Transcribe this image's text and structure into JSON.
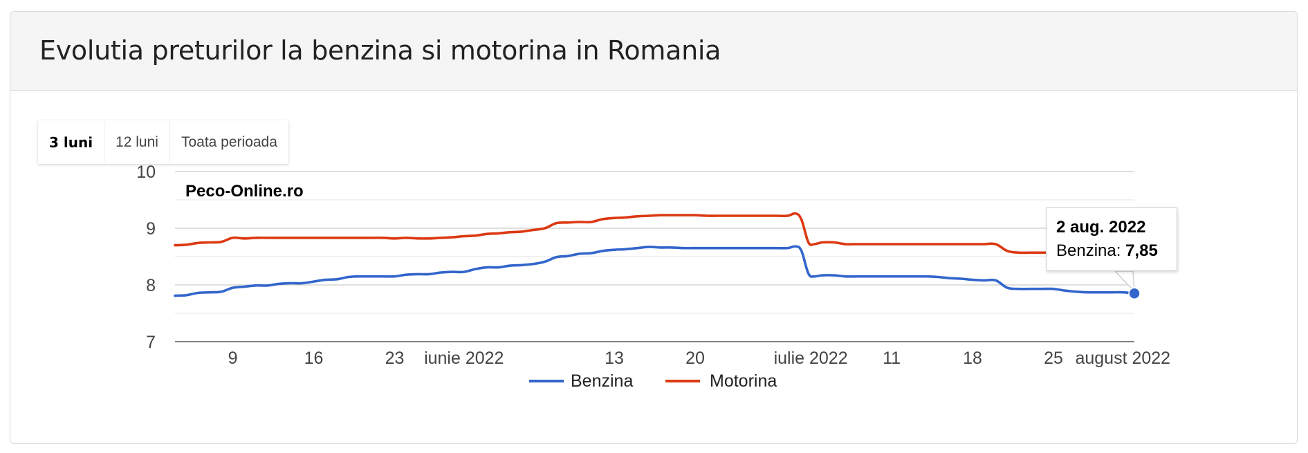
{
  "panel": {
    "title": "Evolutia preturilor la benzina si motorina in Romania"
  },
  "range_buttons": [
    {
      "label": "3 luni",
      "active": true
    },
    {
      "label": "12 luni",
      "active": false
    },
    {
      "label": "Toata perioada",
      "active": false
    }
  ],
  "chart_data": {
    "type": "line",
    "watermark": "Peco-Online.ro",
    "ylim": [
      7,
      10
    ],
    "y_ticks": [
      "10",
      "9",
      "8",
      "7"
    ],
    "x_ticks": [
      {
        "day": 9,
        "label": "9"
      },
      {
        "day": 16,
        "label": "16"
      },
      {
        "day": 23,
        "label": "23"
      },
      {
        "day": 29,
        "label": "iunie 2022"
      },
      {
        "day": 42,
        "label": "13"
      },
      {
        "day": 49,
        "label": "20"
      },
      {
        "day": 59,
        "label": "iulie 2022"
      },
      {
        "day": 66,
        "label": "11"
      },
      {
        "day": 73,
        "label": "18"
      },
      {
        "day": 80,
        "label": "25"
      },
      {
        "day": 86,
        "label": "august 2022"
      }
    ],
    "series": [
      {
        "name": "Benzina",
        "color": "#3366cc",
        "points": [
          [
            4,
            7.81
          ],
          [
            5,
            7.82
          ],
          [
            6,
            7.86
          ],
          [
            7,
            7.87
          ],
          [
            8,
            7.88
          ],
          [
            9,
            7.95
          ],
          [
            10,
            7.97
          ],
          [
            11,
            7.99
          ],
          [
            12,
            7.99
          ],
          [
            13,
            8.02
          ],
          [
            14,
            8.03
          ],
          [
            15,
            8.03
          ],
          [
            16,
            8.06
          ],
          [
            17,
            8.09
          ],
          [
            18,
            8.1
          ],
          [
            19,
            8.14
          ],
          [
            20,
            8.15
          ],
          [
            21,
            8.15
          ],
          [
            22,
            8.15
          ],
          [
            23,
            8.15
          ],
          [
            24,
            8.18
          ],
          [
            25,
            8.19
          ],
          [
            26,
            8.19
          ],
          [
            27,
            8.22
          ],
          [
            28,
            8.23
          ],
          [
            29,
            8.23
          ],
          [
            30,
            8.28
          ],
          [
            31,
            8.31
          ],
          [
            32,
            8.31
          ],
          [
            33,
            8.34
          ],
          [
            34,
            8.35
          ],
          [
            35,
            8.37
          ],
          [
            36,
            8.41
          ],
          [
            37,
            8.49
          ],
          [
            38,
            8.51
          ],
          [
            39,
            8.55
          ],
          [
            40,
            8.56
          ],
          [
            41,
            8.6
          ],
          [
            42,
            8.62
          ],
          [
            43,
            8.63
          ],
          [
            44,
            8.65
          ],
          [
            45,
            8.67
          ],
          [
            46,
            8.66
          ],
          [
            47,
            8.66
          ],
          [
            48,
            8.65
          ],
          [
            49,
            8.65
          ],
          [
            50,
            8.65
          ],
          [
            51,
            8.65
          ],
          [
            52,
            8.65
          ],
          [
            53,
            8.65
          ],
          [
            54,
            8.65
          ],
          [
            55,
            8.65
          ],
          [
            56,
            8.65
          ],
          [
            57,
            8.65
          ],
          [
            57.7,
            8.68
          ],
          [
            58.2,
            8.6
          ],
          [
            58.8,
            8.2
          ],
          [
            59.3,
            8.15
          ],
          [
            60,
            8.17
          ],
          [
            61,
            8.17
          ],
          [
            62,
            8.15
          ],
          [
            63,
            8.15
          ],
          [
            64,
            8.15
          ],
          [
            65,
            8.15
          ],
          [
            66,
            8.15
          ],
          [
            67,
            8.15
          ],
          [
            68,
            8.15
          ],
          [
            69,
            8.15
          ],
          [
            70,
            8.14
          ],
          [
            71,
            8.12
          ],
          [
            72,
            8.11
          ],
          [
            73,
            8.09
          ],
          [
            74,
            8.08
          ],
          [
            75,
            8.08
          ],
          [
            76,
            7.95
          ],
          [
            77,
            7.93
          ],
          [
            78,
            7.93
          ],
          [
            79,
            7.93
          ],
          [
            80,
            7.93
          ],
          [
            81,
            7.9
          ],
          [
            82,
            7.88
          ],
          [
            83,
            7.87
          ],
          [
            84,
            7.87
          ],
          [
            85,
            7.87
          ],
          [
            86,
            7.87
          ],
          [
            87,
            7.85
          ]
        ]
      },
      {
        "name": "Motorina",
        "color": "#dc3912",
        "points": [
          [
            4,
            8.7
          ],
          [
            5,
            8.71
          ],
          [
            6,
            8.74
          ],
          [
            7,
            8.75
          ],
          [
            8,
            8.76
          ],
          [
            9,
            8.83
          ],
          [
            10,
            8.82
          ],
          [
            11,
            8.83
          ],
          [
            12,
            8.83
          ],
          [
            13,
            8.83
          ],
          [
            14,
            8.83
          ],
          [
            15,
            8.83
          ],
          [
            16,
            8.83
          ],
          [
            17,
            8.83
          ],
          [
            18,
            8.83
          ],
          [
            19,
            8.83
          ],
          [
            20,
            8.83
          ],
          [
            21,
            8.83
          ],
          [
            22,
            8.83
          ],
          [
            23,
            8.82
          ],
          [
            24,
            8.83
          ],
          [
            25,
            8.82
          ],
          [
            26,
            8.82
          ],
          [
            27,
            8.83
          ],
          [
            28,
            8.84
          ],
          [
            29,
            8.86
          ],
          [
            30,
            8.87
          ],
          [
            31,
            8.9
          ],
          [
            32,
            8.91
          ],
          [
            33,
            8.93
          ],
          [
            34,
            8.94
          ],
          [
            35,
            8.97
          ],
          [
            36,
            9.0
          ],
          [
            37,
            9.09
          ],
          [
            38,
            9.1
          ],
          [
            39,
            9.11
          ],
          [
            40,
            9.11
          ],
          [
            41,
            9.16
          ],
          [
            42,
            9.18
          ],
          [
            43,
            9.19
          ],
          [
            44,
            9.21
          ],
          [
            45,
            9.22
          ],
          [
            46,
            9.23
          ],
          [
            47,
            9.23
          ],
          [
            48,
            9.23
          ],
          [
            49,
            9.23
          ],
          [
            50,
            9.22
          ],
          [
            51,
            9.22
          ],
          [
            52,
            9.22
          ],
          [
            53,
            9.22
          ],
          [
            54,
            9.22
          ],
          [
            55,
            9.22
          ],
          [
            56,
            9.22
          ],
          [
            57,
            9.22
          ],
          [
            57.7,
            9.26
          ],
          [
            58.2,
            9.15
          ],
          [
            58.8,
            8.75
          ],
          [
            59.3,
            8.72
          ],
          [
            60,
            8.75
          ],
          [
            61,
            8.75
          ],
          [
            62,
            8.72
          ],
          [
            63,
            8.72
          ],
          [
            64,
            8.72
          ],
          [
            65,
            8.72
          ],
          [
            66,
            8.72
          ],
          [
            67,
            8.72
          ],
          [
            68,
            8.72
          ],
          [
            69,
            8.72
          ],
          [
            70,
            8.72
          ],
          [
            71,
            8.72
          ],
          [
            72,
            8.72
          ],
          [
            73,
            8.72
          ],
          [
            74,
            8.72
          ],
          [
            75,
            8.72
          ],
          [
            76,
            8.6
          ],
          [
            77,
            8.57
          ],
          [
            78,
            8.57
          ],
          [
            79,
            8.57
          ],
          [
            80,
            8.57
          ],
          [
            80.5,
            8.57
          ]
        ]
      }
    ],
    "tooltip": {
      "date": "2 aug. 2022",
      "series": "Benzina",
      "label": "Benzina: ",
      "value": "7,85",
      "x": 87,
      "y": 7.85
    }
  }
}
